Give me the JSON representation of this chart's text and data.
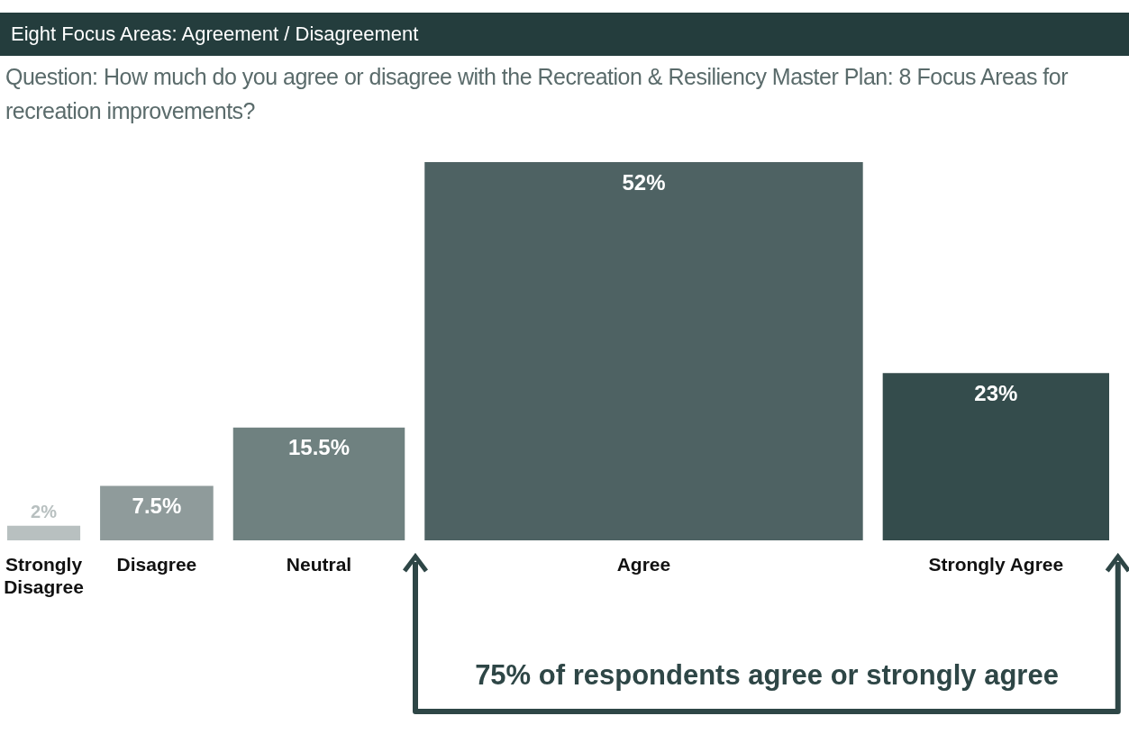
{
  "chart_data": {
    "type": "bar",
    "title": "Eight Focus Areas: Agreement / Disagreement",
    "subtitle": "Question: How much do you agree or disagree with the Recreation & Resiliency Master Plan: 8 Focus Areas for recreation improvements?",
    "categories": [
      "Strongly Disagree",
      "Disagree",
      "Neutral",
      "Agree",
      "Strongly Agree"
    ],
    "values": [
      2,
      7.5,
      15.5,
      52,
      23
    ],
    "value_labels": [
      "2%",
      "7.5%",
      "15.5%",
      "52%",
      "23%"
    ],
    "colors": [
      "#b8c0c0",
      "#8f9b9b",
      "#6f8180",
      "#4e6263",
      "#344c4c"
    ],
    "annotations": [
      "75% of respondents agree or strongly agree"
    ],
    "legend": false
  }
}
